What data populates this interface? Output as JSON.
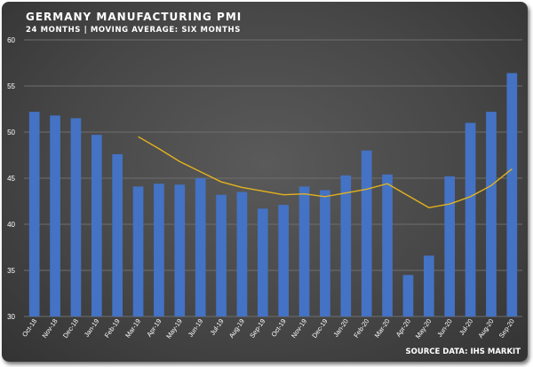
{
  "header": {
    "title": "GERMANY MANUFACTURING PMI",
    "subtitle": "24 MONTHS | MOVING AVERAGE: SIX MONTHS"
  },
  "footer": {
    "source": "SOURCE DATA: IHS MARKIT"
  },
  "colors": {
    "bar": "#4472C4",
    "moving_average": "#E3B21E",
    "grid": "#6e6e6e",
    "text": "#ffffff"
  },
  "chart_data": {
    "type": "bar",
    "title": "GERMANY MANUFACTURING PMI",
    "subtitle": "24 MONTHS | MOVING AVERAGE: SIX MONTHS",
    "categories": [
      "Oct-18",
      "Nov-18",
      "Dec-18",
      "Jan-19",
      "Feb-19",
      "Mar-19",
      "Apr-19",
      "May-19",
      "Jun-19",
      "Jul-19",
      "Aug-19",
      "Sep-19",
      "Oct-19",
      "Nov-19",
      "Dec-19",
      "Jan-20",
      "Feb-20",
      "Mar-20",
      "Apr-20",
      "May-20",
      "Jun-20",
      "Jul-20",
      "Aug-20",
      "Sep-20"
    ],
    "series": [
      {
        "type": "bar",
        "values": [
          52.2,
          51.8,
          51.5,
          49.7,
          47.6,
          44.1,
          44.4,
          44.3,
          45.0,
          43.2,
          43.5,
          41.7,
          42.1,
          44.1,
          43.7,
          45.3,
          48.0,
          45.4,
          34.5,
          36.6,
          45.2,
          51.0,
          52.2,
          56.4
        ]
      },
      {
        "type": "line",
        "values": [
          null,
          null,
          null,
          null,
          null,
          49.5,
          48.2,
          46.8,
          45.7,
          44.6,
          44.0,
          43.6,
          43.2,
          43.3,
          43.0,
          43.4,
          43.8,
          44.4,
          null,
          41.8,
          42.2,
          43.0,
          44.2,
          46.0
        ]
      }
    ],
    "xlabel": "",
    "ylabel": "",
    "ylim": [
      30,
      60
    ],
    "yticks": [
      30,
      35,
      40,
      45,
      50,
      55,
      60
    ],
    "grid": true,
    "legend": "none"
  }
}
